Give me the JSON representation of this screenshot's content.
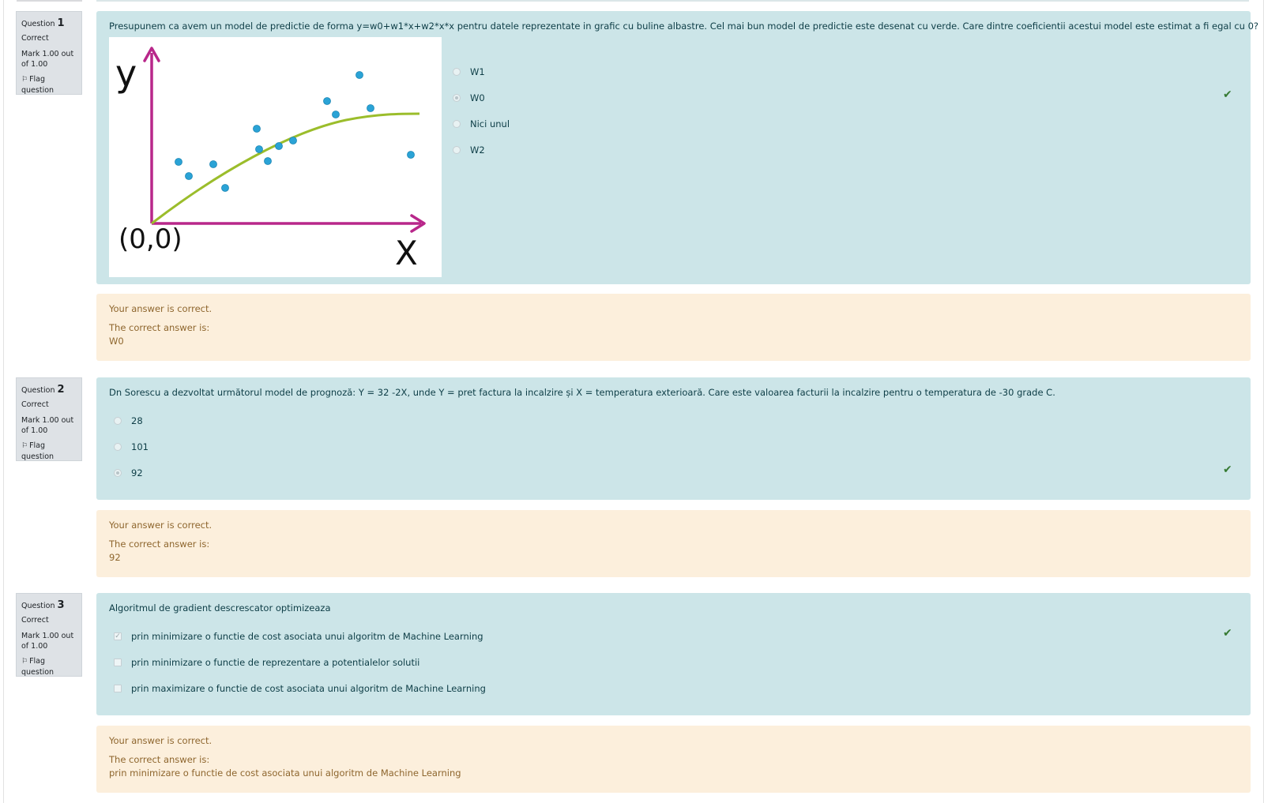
{
  "q1": {
    "number_prefix": "Question",
    "number": "1",
    "state": "Correct",
    "grade": "Mark 1.00 out of 1.00",
    "flag": "Flag question",
    "text": "Presupunem ca avem un model de predictie de forma y=w0+w1*x+w2*x*x pentru datele reprezentate in grafic cu buline albastre. Cel mai bun model de predictie este desenat cu verde. Care dintre coeficientii acestui model este estimat a fi egal cu 0?",
    "graph": {
      "y_label": "y",
      "x_label": "X",
      "origin_label": "(0,0)",
      "axis_color": "#b8278a",
      "curve_color": "#9bbd2b",
      "point_color": "#2aa3d6"
    },
    "options": [
      {
        "label": "W1",
        "checked": false
      },
      {
        "label": "W0",
        "checked": true
      },
      {
        "label": "Nici unul",
        "checked": false
      },
      {
        "label": "W2",
        "checked": false
      }
    ],
    "feedback": {
      "result": "Your answer is correct.",
      "correct_prefix": "The correct answer is:",
      "correct_answer": "W0"
    }
  },
  "q2": {
    "number_prefix": "Question",
    "number": "2",
    "state": "Correct",
    "grade": "Mark 1.00 out of 1.00",
    "flag": "Flag question",
    "text": "Dn Sorescu a dezvoltat următorul model de prognoză: Y = 32 -2X, unde Y = pret factura la incalzire și X = temperatura exterioară. Care este valoarea facturii la incalzire pentru o temperatura de -30 grade C.",
    "options": [
      {
        "label": "28",
        "checked": false
      },
      {
        "label": "101",
        "checked": false
      },
      {
        "label": "92",
        "checked": true
      }
    ],
    "feedback": {
      "result": "Your answer is correct.",
      "correct_prefix": "The correct answer is:",
      "correct_answer": "92"
    }
  },
  "q3": {
    "number_prefix": "Question",
    "number": "3",
    "state": "Correct",
    "grade": "Mark 1.00 out of 1.00",
    "flag": "Flag question",
    "text": "Algoritmul de gradient descrescator optimizeaza",
    "options": [
      {
        "label": "prin minimizare o functie de cost asociata unui algoritm de Machine Learning",
        "checked": true
      },
      {
        "label": "prin minimizare o functie de reprezentare a potentialelor solutii",
        "checked": false
      },
      {
        "label": "prin maximizare o functie de cost asociata unui algoritm de Machine Learning",
        "checked": false
      }
    ],
    "feedback": {
      "result": "Your answer is correct.",
      "correct_prefix": "The correct answer is:",
      "correct_answer": "prin minimizare o functie de cost asociata unui algoritm de Machine Learning"
    }
  },
  "icons": {
    "tick": "check-icon",
    "flag": "flag-icon"
  },
  "colors": {
    "formulation_bg": "#cce5e8",
    "feedback_bg": "#fcefdc",
    "info_bg": "#dee2e6",
    "correct_tick": "#357a32"
  }
}
